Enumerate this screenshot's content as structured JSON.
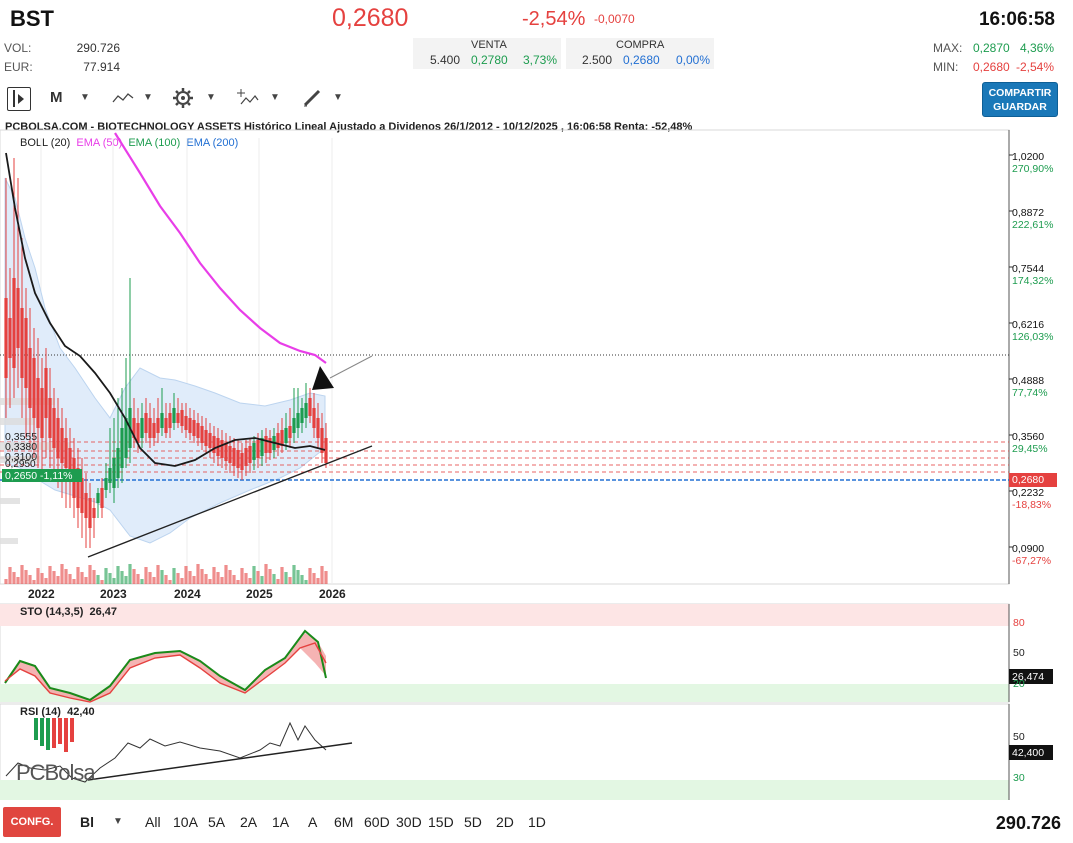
{
  "header": {
    "ticker": "BST",
    "price": "0,2680",
    "change_pct": "-2,54%",
    "change_abs": "-0,0070",
    "time": "16:06:58",
    "vol_label": "VOL:",
    "vol_value": "290.726",
    "eur_label": "EUR:",
    "eur_value": "77.914",
    "venta": {
      "label": "VENTA",
      "qty": "5.400",
      "price": "0,2780",
      "pct": "3,73%"
    },
    "compra": {
      "label": "COMPRA",
      "qty": "2.500",
      "price": "0,2680",
      "pct": "0,00%"
    },
    "max_label": "MAX:",
    "max_value": "0,2870",
    "max_pct": "4,36%",
    "min_label": "MIN:",
    "min_value": "0,2680",
    "min_pct": "-2,54%"
  },
  "toolbar": {
    "period": "M",
    "share_line1": "COMPARTIR",
    "share_line2": "GUARDAR",
    "icons": [
      "panel-toggle-icon",
      "line-style-icon",
      "gear-icon",
      "indicators-icon",
      "drawing-pen-icon"
    ]
  },
  "chart": {
    "title": "PCBOLSA.COM - BIOTECHNOLOGY ASSETS Histórico Lineal Ajustado a Dividenos 26/1/2012 - 10/12/2025 , 16:06:58 Renta: -52,48%",
    "indicators": {
      "boll": "BOLL (20)",
      "ema50": "EMA (50)",
      "ema100": "EMA (100)",
      "ema200": "EMA (200)"
    },
    "axis": [
      {
        "price": "1,0200",
        "pct": "270,90%"
      },
      {
        "price": "0,8872",
        "pct": "222,61%"
      },
      {
        "price": "0,7544",
        "pct": "174,32%"
      },
      {
        "price": "0,6216",
        "pct": "126,03%"
      },
      {
        "price": "0,4888",
        "pct": "77,74%"
      },
      {
        "price": "0,3560",
        "pct": "29,45%"
      },
      {
        "price": "0,2232",
        "pct": "-18,83%"
      },
      {
        "price": "0,0900",
        "pct": "-67,27%"
      }
    ],
    "current_price_tag": "0,2680",
    "left_labels": {
      "l1": "0,3555",
      "l2": "0,3380",
      "l3": "0,3100",
      "l4": "0,2950",
      "tag": "0,2650  -1,11%"
    },
    "years": [
      "2022",
      "2023",
      "2024",
      "2025",
      "2026"
    ],
    "colors": {
      "up": "#1d9c4f",
      "down": "#e5413f",
      "ema50": "#e83ee8",
      "boll": "#cfe2f7"
    }
  },
  "sto": {
    "label": "STO (14,3,5)",
    "value": "26,47",
    "levels": [
      "80",
      "50",
      "20"
    ],
    "tag": "26,474"
  },
  "rsi": {
    "label": "RSI (14)",
    "value": "42,40",
    "levels": [
      "50",
      "30"
    ],
    "tag": "42,400",
    "watermark": "PCBolsa"
  },
  "bottom": {
    "conf": "CONFG.",
    "interval": "Bl",
    "periods": [
      "All",
      "10A",
      "5A",
      "2A",
      "1A",
      "A",
      "6M",
      "60D",
      "30D",
      "15D",
      "5D",
      "2D",
      "1D"
    ],
    "volume_total": "290.726"
  }
}
